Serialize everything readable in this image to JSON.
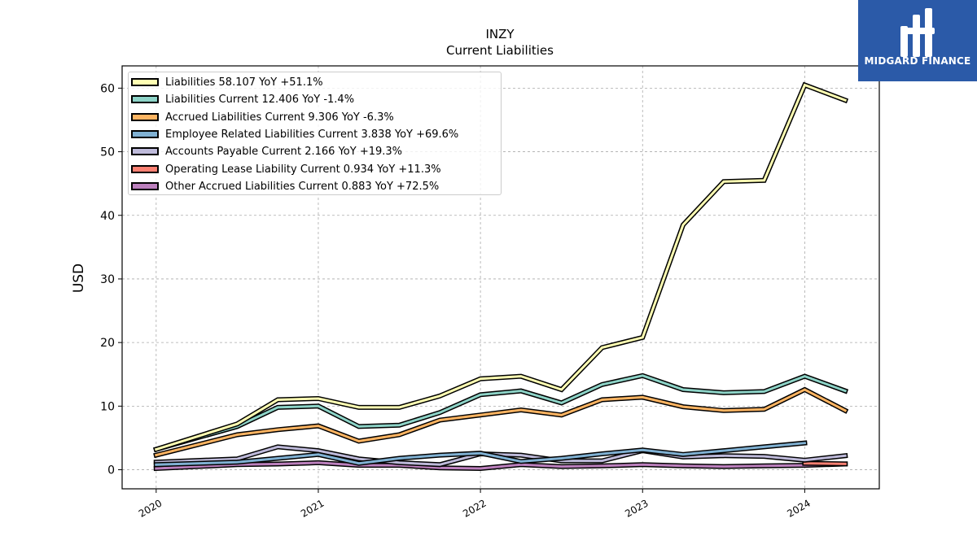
{
  "header": {
    "title": "INZY",
    "subtitle": "Current  Liabilities"
  },
  "logo": {
    "text": "MIDGARD FINANCE",
    "color": "#2b5aa8"
  },
  "chart_data": {
    "type": "line",
    "ylabel": "USD",
    "xlabel": "",
    "ylim": [
      -3,
      63.5
    ],
    "xlim": [
      2019.79,
      2024.46
    ],
    "yticks": [
      0,
      10,
      20,
      30,
      40,
      50,
      60
    ],
    "xticks": [
      {
        "value": 2020.0,
        "label": "2020"
      },
      {
        "value": 2021.0,
        "label": "2021"
      },
      {
        "value": 2022.0,
        "label": "2022"
      },
      {
        "value": 2023.0,
        "label": "2023"
      },
      {
        "value": 2024.0,
        "label": "2024"
      }
    ],
    "grid": true,
    "legend_position": "top-left",
    "series": [
      {
        "name": "Liabilities",
        "legend": "Liabilities  58.107 YoY +51.1%",
        "color": "#ffffb3",
        "points": [
          [
            2020.0,
            3.2
          ],
          [
            2020.5,
            7.2
          ],
          [
            2020.75,
            11.0
          ],
          [
            2021.0,
            11.2
          ],
          [
            2021.25,
            9.8
          ],
          [
            2021.5,
            9.8
          ],
          [
            2021.75,
            11.6
          ],
          [
            2022.0,
            14.3
          ],
          [
            2022.25,
            14.7
          ],
          [
            2022.5,
            12.6
          ],
          [
            2022.75,
            19.2
          ],
          [
            2023.0,
            20.8
          ],
          [
            2023.25,
            38.5
          ],
          [
            2023.5,
            45.3
          ],
          [
            2023.75,
            45.5
          ],
          [
            2024.0,
            60.5
          ],
          [
            2024.25,
            58.1
          ]
        ]
      },
      {
        "name": "Liabilities Current",
        "legend": "Liabilities Current  12.406 YoY -1.4%",
        "color": "#8dd3c7",
        "points": [
          [
            2020.0,
            3.2
          ],
          [
            2020.5,
            6.8
          ],
          [
            2020.75,
            9.8
          ],
          [
            2021.0,
            10.0
          ],
          [
            2021.25,
            6.8
          ],
          [
            2021.5,
            7.0
          ],
          [
            2021.75,
            9.0
          ],
          [
            2022.0,
            11.8
          ],
          [
            2022.25,
            12.4
          ],
          [
            2022.5,
            10.5
          ],
          [
            2022.75,
            13.4
          ],
          [
            2023.0,
            14.8
          ],
          [
            2023.25,
            12.6
          ],
          [
            2023.5,
            12.1
          ],
          [
            2023.75,
            12.3
          ],
          [
            2024.0,
            14.7
          ],
          [
            2024.25,
            12.4
          ]
        ]
      },
      {
        "name": "Accrued Liabilities Current",
        "legend": "Accrued Liabilities Current  9.306 YoY -6.3%",
        "color": "#fdb462",
        "points": [
          [
            2020.0,
            2.3
          ],
          [
            2020.5,
            5.5
          ],
          [
            2020.75,
            6.3
          ],
          [
            2021.0,
            6.9
          ],
          [
            2021.25,
            4.5
          ],
          [
            2021.5,
            5.5
          ],
          [
            2021.75,
            7.8
          ],
          [
            2022.0,
            8.6
          ],
          [
            2022.25,
            9.4
          ],
          [
            2022.5,
            8.6
          ],
          [
            2022.75,
            11.0
          ],
          [
            2023.0,
            11.4
          ],
          [
            2023.25,
            9.9
          ],
          [
            2023.5,
            9.3
          ],
          [
            2023.75,
            9.5
          ],
          [
            2024.0,
            12.6
          ],
          [
            2024.25,
            9.3
          ]
        ]
      },
      {
        "name": "Employee Related Liabilities Current",
        "legend": "Employee Related Liabilities Current  3.838 YoY +69.6%",
        "color": "#80b1d3",
        "points": [
          [
            2020.0,
            0.8
          ],
          [
            2020.5,
            1.2
          ],
          [
            2020.75,
            1.8
          ],
          [
            2021.0,
            2.4
          ],
          [
            2021.25,
            1.0
          ],
          [
            2021.5,
            1.8
          ],
          [
            2021.75,
            2.3
          ],
          [
            2022.0,
            2.6
          ],
          [
            2022.25,
            1.3
          ],
          [
            2022.5,
            1.8
          ],
          [
            2022.75,
            2.5
          ],
          [
            2023.0,
            3.1
          ],
          [
            2023.25,
            2.4
          ],
          [
            2023.5,
            3.0
          ],
          [
            2023.75,
            3.6
          ],
          [
            2024.0,
            4.2
          ]
        ]
      },
      {
        "name": "Accounts Payable Current",
        "legend": "Accounts Payable Current  2.166 YoY +19.3%",
        "color": "#bebada",
        "points": [
          [
            2020.0,
            1.2
          ],
          [
            2020.5,
            1.7
          ],
          [
            2020.75,
            3.6
          ],
          [
            2021.0,
            3.0
          ],
          [
            2021.25,
            1.7
          ],
          [
            2021.5,
            1.1
          ],
          [
            2021.75,
            0.8
          ],
          [
            2022.0,
            2.5
          ],
          [
            2022.25,
            2.3
          ],
          [
            2022.5,
            1.4
          ],
          [
            2022.75,
            1.4
          ],
          [
            2023.0,
            3.0
          ],
          [
            2023.25,
            2.0
          ],
          [
            2023.5,
            2.2
          ],
          [
            2023.75,
            2.1
          ],
          [
            2024.0,
            1.5
          ],
          [
            2024.25,
            2.2
          ]
        ]
      },
      {
        "name": "Operating Lease Liability Current",
        "legend": "Operating Lease Liability Current  0.934 YoY +11.3%",
        "color": "#fb8072",
        "points": [
          [
            2024.0,
            1.0
          ],
          [
            2024.25,
            0.93
          ]
        ]
      },
      {
        "name": "Other Accrued Liabilities Current",
        "legend": "Other Accrued Liabilities Current  0.883 YoY +72.5%",
        "color": "#bc80bd",
        "points": [
          [
            2020.0,
            0.2
          ],
          [
            2020.5,
            0.8
          ],
          [
            2020.75,
            0.9
          ],
          [
            2021.0,
            1.1
          ],
          [
            2021.25,
            0.7
          ],
          [
            2021.5,
            0.7
          ],
          [
            2021.75,
            0.3
          ],
          [
            2022.0,
            0.2
          ],
          [
            2022.25,
            0.8
          ],
          [
            2022.5,
            0.5
          ],
          [
            2022.75,
            0.6
          ],
          [
            2023.0,
            0.8
          ],
          [
            2023.25,
            0.6
          ],
          [
            2023.5,
            0.5
          ],
          [
            2023.75,
            0.6
          ],
          [
            2024.0,
            0.7
          ],
          [
            2024.25,
            0.9
          ]
        ]
      }
    ]
  }
}
